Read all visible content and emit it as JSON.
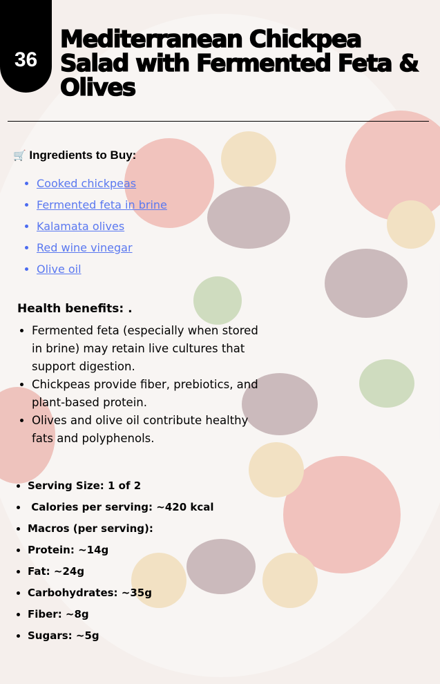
{
  "recipe_number": "36",
  "title": "Mediterranean Chickpea Salad with Fermented Feta & Olives",
  "ingredients": {
    "icon": "shopping-cart-icon",
    "icon_glyph": "🛒",
    "heading": "Ingredients to Buy:",
    "items": [
      "Cooked chickpeas",
      "Fermented feta in brine",
      "Kalamata olives",
      "Red wine vinegar",
      "Olive oil"
    ]
  },
  "health": {
    "heading": "Health benefits: .",
    "items": [
      "Fermented feta (especially when stored in brine) may retain live cultures that support digestion.",
      "Chickpeas provide fiber, prebiotics, and plant-based protein.",
      "Olives and olive oil contribute healthy fats and polyphenols."
    ]
  },
  "nutrition": [
    "Serving Size: 1 of 2",
    " Calories per serving: ~420 kcal",
    "Macros (per serving):",
    "Protein: ~14g",
    "Fat: ~24g",
    "Carbohydrates: ~35g",
    "Fiber: ~8g",
    "Sugars: ~5g"
  ],
  "colors": {
    "link": "#5a78f0",
    "badge": "#000000"
  }
}
